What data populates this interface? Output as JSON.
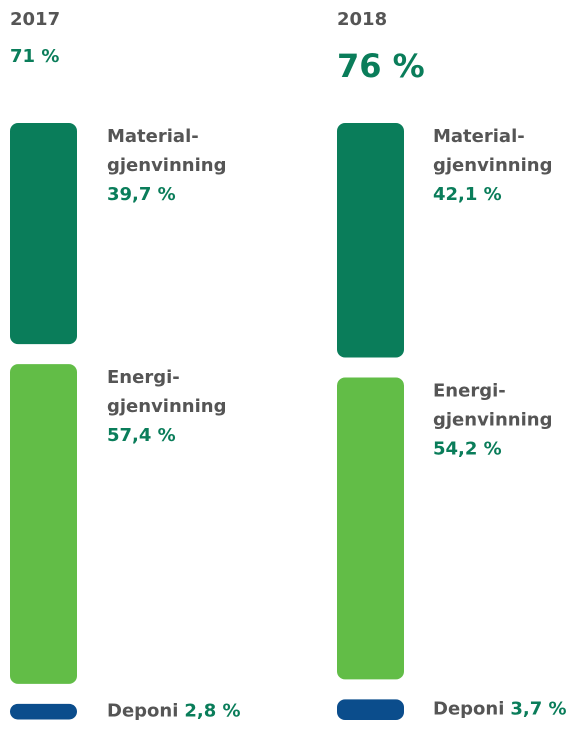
{
  "chart_data": [
    {
      "type": "stacked-column",
      "title": "2017",
      "subtitle": "71 %",
      "categories": [
        [
          "Material-",
          "gjenvinning"
        ],
        [
          "Energi-",
          "gjenvinning"
        ],
        [
          "Deponi"
        ]
      ],
      "values": [
        39.7,
        57.4,
        2.8
      ],
      "value_labels": [
        "39,7 %",
        "57,4 %",
        "2,8 %"
      ],
      "colors": [
        "#0a7d5a",
        "#62bd47",
        "#0b4d8c"
      ]
    },
    {
      "type": "stacked-column",
      "title": "2018",
      "subtitle": "76 %",
      "categories": [
        [
          "Material-",
          "gjenvinning"
        ],
        [
          "Energi-",
          "gjenvinning"
        ],
        [
          "Deponi"
        ]
      ],
      "values": [
        42.1,
        54.2,
        3.7
      ],
      "value_labels": [
        "42,1 %",
        "54,2 %",
        "3,7 %"
      ],
      "colors": [
        "#0a7d5a",
        "#62bd47",
        "#0b4d8c"
      ]
    }
  ]
}
